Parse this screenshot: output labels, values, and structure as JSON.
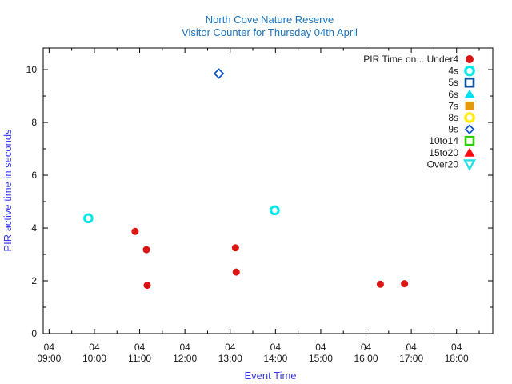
{
  "chart_data": {
    "type": "scatter",
    "title": "North Cove Nature Reserve",
    "subtitle": "Visitor Counter for Thursday 04th April",
    "xlabel": "Event Time",
    "ylabel": "PIR active time in seconds",
    "x_tick_day": "04",
    "x_ticks": [
      "09:00",
      "10:00",
      "11:00",
      "12:00",
      "13:00",
      "14:00",
      "15:00",
      "16:00",
      "17:00",
      "18:00"
    ],
    "x_range_hours": [
      8.87,
      18.8
    ],
    "y_ticks": [
      0,
      2,
      4,
      6,
      8,
      10
    ],
    "y_minor_ticks": [
      1,
      3,
      5,
      7,
      9
    ],
    "ylim": [
      0,
      10.82
    ],
    "grid": false,
    "legend_position": "top-right",
    "colors": {
      "title": "#1c74bc",
      "axis_labels": "#3a3aee",
      "tick_labels": "#1a1a1a",
      "frame": "#000000",
      "background": "#ffffff"
    },
    "series": [
      {
        "label": "PIR Time on .. Under4",
        "marker": "circle",
        "style": "filled",
        "color": "#dc1414",
        "points": [
          {
            "time": "10:54",
            "value": 3.87
          },
          {
            "time": "11:09",
            "value": 3.18
          },
          {
            "time": "11:10",
            "value": 1.83
          },
          {
            "time": "13:07",
            "value": 3.25
          },
          {
            "time": "13:08",
            "value": 2.33
          },
          {
            "time": "16:19",
            "value": 1.87
          },
          {
            "time": "16:51",
            "value": 1.89
          }
        ]
      },
      {
        "label": "4s",
        "marker": "circle",
        "style": "open",
        "color": "#00e8e8",
        "points": [
          {
            "time": "09:52",
            "value": 4.37
          },
          {
            "time": "13:59",
            "value": 4.67
          }
        ]
      },
      {
        "label": "5s",
        "marker": "square",
        "style": "open",
        "color": "#10549e",
        "points": []
      },
      {
        "label": "6s",
        "marker": "triangle",
        "style": "filled",
        "color": "#00dff0",
        "points": []
      },
      {
        "label": "7s",
        "marker": "square",
        "style": "filled",
        "color": "#e39b0b",
        "points": []
      },
      {
        "label": "8s",
        "marker": "circle",
        "style": "open",
        "color": "#ffec00",
        "points": []
      },
      {
        "label": "9s",
        "marker": "diamond",
        "style": "open",
        "color": "#0b55c8",
        "points": [
          {
            "time": "12:45",
            "value": 9.85
          }
        ]
      },
      {
        "label": "10to14",
        "marker": "square",
        "style": "open",
        "color": "#2ecc00",
        "points": []
      },
      {
        "label": "15to20",
        "marker": "triangle",
        "style": "filled",
        "color": "#ff0a0a",
        "points": []
      },
      {
        "label": "Over20",
        "marker": "triangle-down",
        "style": "open",
        "color": "#27e0e4",
        "points": []
      }
    ]
  }
}
